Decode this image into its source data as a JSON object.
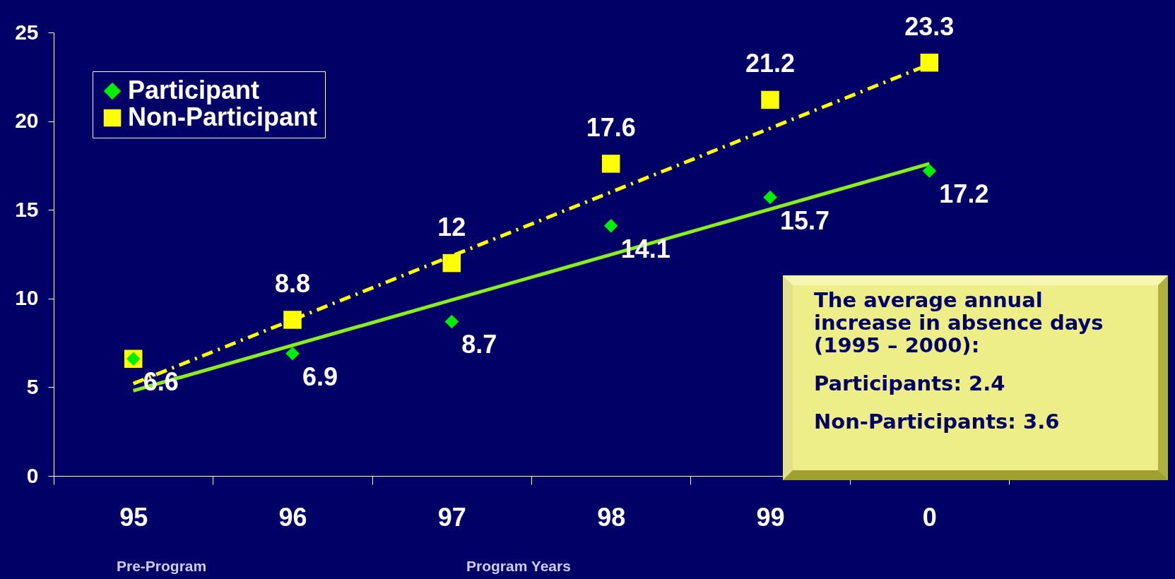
{
  "chart_data": {
    "type": "scatter",
    "categories": [
      "95",
      "96",
      "97",
      "98",
      "99",
      "0"
    ],
    "ylim": [
      0,
      25
    ],
    "yticks": [
      0,
      5,
      10,
      15,
      20,
      25
    ],
    "grid": false,
    "legend": "top left",
    "series": [
      {
        "name": "Participant",
        "marker": "diamond",
        "color": "#00ee00",
        "values": [
          6.6,
          6.9,
          8.7,
          14.1,
          15.7,
          17.2
        ],
        "value_labels": [
          "6.6",
          "6.9",
          "8.7",
          "14.1",
          "15.7",
          "17.2"
        ]
      },
      {
        "name": "Non-Participant",
        "marker": "square",
        "color": "#ffff00",
        "values": [
          6.6,
          8.8,
          12,
          17.6,
          21.2,
          23.3
        ],
        "value_labels": [
          null,
          "8.8",
          "12",
          "17.6",
          "21.2",
          "23.3"
        ]
      },
      {
        "type": "line",
        "x": [
          "95",
          "0"
        ],
        "color": "#88ee22",
        "line_style": "solid",
        "values": [
          4.8,
          17.6
        ]
      },
      {
        "type": "line",
        "x": [
          "95",
          "0"
        ],
        "color": "#ffff00",
        "line_style": "dashed",
        "values": [
          5.2,
          23.2
        ]
      }
    ],
    "annotations": [
      "Pre-Program",
      "Program Years",
      "The average annual increase in absence days (1995 – 2000):",
      "Participants: 2.4",
      "Non-Participants: 3.6"
    ]
  }
}
